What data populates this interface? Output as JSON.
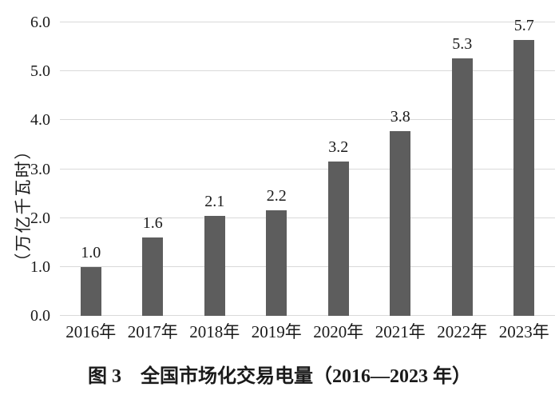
{
  "chart_data": {
    "type": "bar",
    "title": "图 3　全国市场化交易电量（2016—2023 年）",
    "xlabel": "",
    "ylabel": "（万亿千瓦时）",
    "categories": [
      "2016年",
      "2017年",
      "2018年",
      "2019年",
      "2020年",
      "2021年",
      "2022年",
      "2023年"
    ],
    "values": [
      1.0,
      1.6,
      2.1,
      2.2,
      3.2,
      3.8,
      5.3,
      5.7
    ],
    "value_labels": [
      "1.0",
      "1.6",
      "2.1",
      "2.2",
      "3.2",
      "3.8",
      "5.3",
      "5.7"
    ],
    "bar_heights_units": [
      1.0,
      1.61,
      2.05,
      2.16,
      3.16,
      3.78,
      5.26,
      5.64
    ],
    "ylim": [
      0,
      6
    ],
    "ytick_step": 1.0,
    "yticks": [
      "6.0",
      "5.0",
      "4.0",
      "3.0",
      "2.0",
      "1.0",
      "0.0"
    ],
    "grid": true,
    "legend": null,
    "bar_color": "#5d5d5d",
    "gridline_color": "#d9d9d9",
    "text_color": "#1a1a1a",
    "background_color": "#ffffff"
  }
}
